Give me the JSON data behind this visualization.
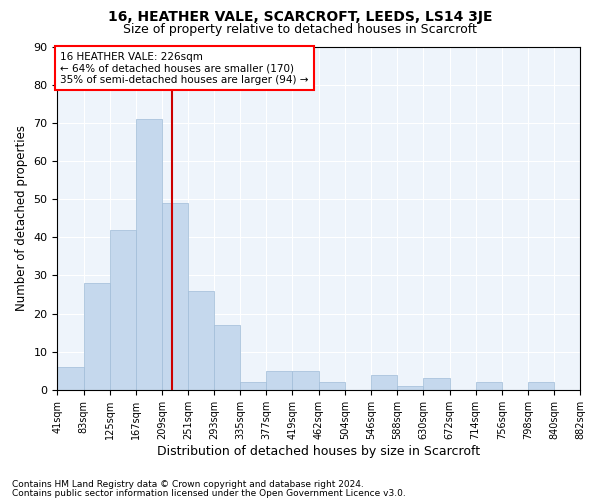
{
  "title1": "16, HEATHER VALE, SCARCROFT, LEEDS, LS14 3JE",
  "title2": "Size of property relative to detached houses in Scarcroft",
  "xlabel": "Distribution of detached houses by size in Scarcroft",
  "ylabel": "Number of detached properties",
  "footnote1": "Contains HM Land Registry data © Crown copyright and database right 2024.",
  "footnote2": "Contains public sector information licensed under the Open Government Licence v3.0.",
  "annotation_line1": "16 HEATHER VALE: 226sqm",
  "annotation_line2": "← 64% of detached houses are smaller (170)",
  "annotation_line3": "35% of semi-detached houses are larger (94) →",
  "property_size": 226,
  "bin_edges": [
    41,
    83,
    125,
    167,
    209,
    251,
    293,
    335,
    377,
    419,
    462,
    504,
    546,
    588,
    630,
    672,
    714,
    756,
    798,
    840,
    882
  ],
  "bar_heights": [
    6,
    28,
    42,
    71,
    49,
    26,
    17,
    2,
    5,
    5,
    2,
    0,
    4,
    1,
    3,
    0,
    2,
    0,
    2,
    0
  ],
  "bar_color": "#c5d8ed",
  "bar_edge_color": "#a0bcd8",
  "marker_line_color": "#cc0000",
  "background_color": "#eef4fb",
  "grid_color": "#ffffff",
  "ylim": [
    0,
    90
  ],
  "yticks": [
    0,
    10,
    20,
    30,
    40,
    50,
    60,
    70,
    80,
    90
  ],
  "figsize": [
    6.0,
    5.0
  ],
  "dpi": 100
}
